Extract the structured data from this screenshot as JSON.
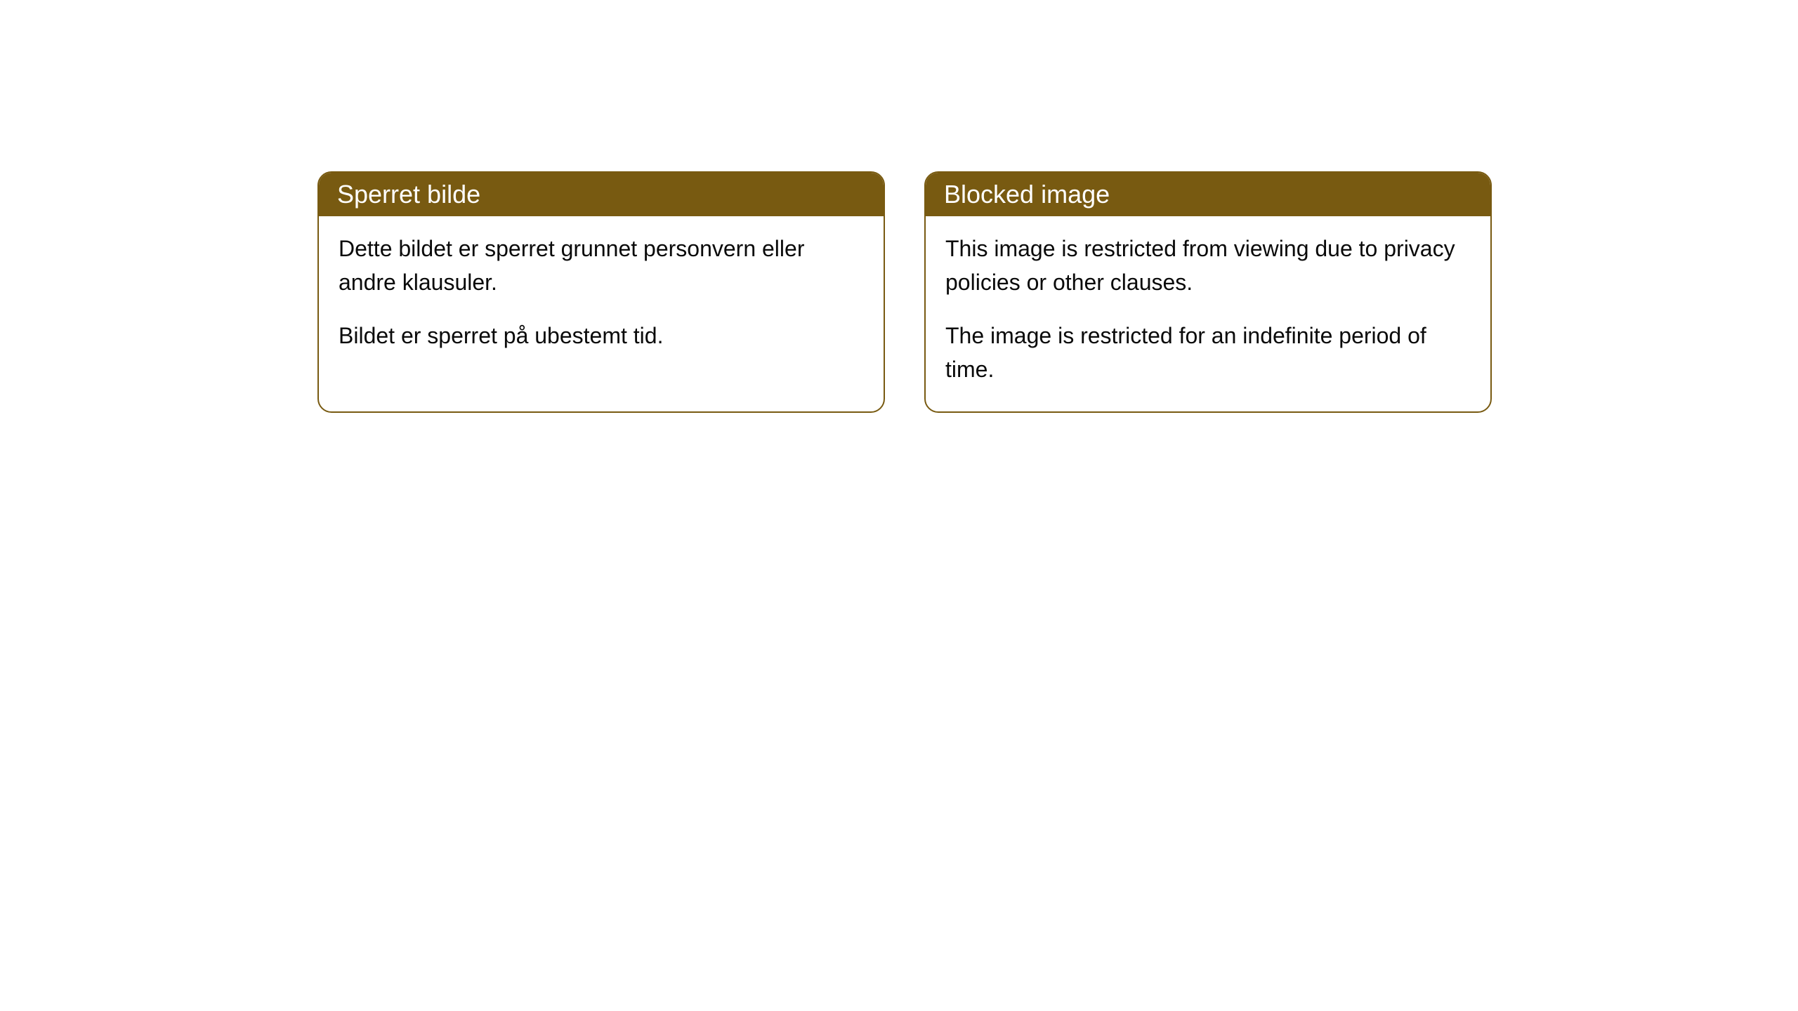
{
  "cards": {
    "left": {
      "title": "Sperret bilde",
      "paragraph1": "Dette bildet er sperret grunnet personvern eller andre klausuler.",
      "paragraph2": "Bildet er sperret på ubestemt tid."
    },
    "right": {
      "title": "Blocked image",
      "paragraph1": "This image is restricted from viewing due to privacy policies or other clauses.",
      "paragraph2": "The image is restricted for an indefinite period of time."
    }
  },
  "styling": {
    "header_bg_color": "#785a11",
    "header_text_color": "#ffffff",
    "border_color": "#785a11",
    "body_text_color": "#0a0a0a",
    "body_bg_color": "#ffffff",
    "page_bg_color": "#ffffff",
    "border_radius": 20,
    "header_fontsize": 36,
    "body_fontsize": 32
  }
}
